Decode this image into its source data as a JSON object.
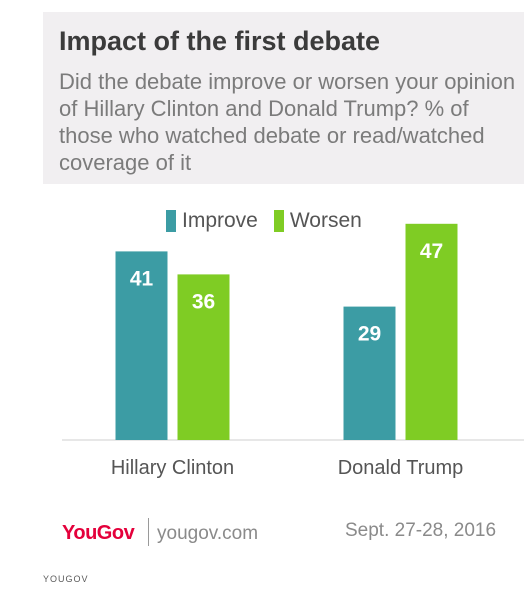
{
  "header": {
    "title": "Impact of the first debate",
    "subtitle": "Did the debate improve or worsen your opinion of Hillary Clinton and Donald Trump? % of those who watched debate or read/watched coverage of it"
  },
  "chart_data": {
    "type": "bar",
    "categories": [
      "Hillary Clinton",
      "Donald Trump"
    ],
    "series": [
      {
        "name": "Improve",
        "values": [
          41,
          29
        ],
        "color": "#3c9ca4"
      },
      {
        "name": "Worsen",
        "values": [
          36,
          47
        ],
        "color": "#7fcc24"
      }
    ],
    "title": "",
    "xlabel": "",
    "ylabel": "",
    "ylim": [
      0,
      50
    ],
    "grid": false,
    "legend": "top"
  },
  "footer": {
    "brand": "YouGov",
    "url": "yougov.com",
    "date": "Sept. 27-28, 2016",
    "watermark": "YOUGOV"
  }
}
